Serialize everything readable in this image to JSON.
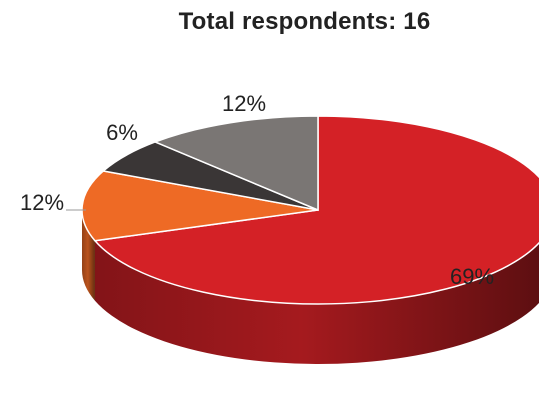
{
  "chart_data": {
    "type": "pie",
    "title": "Total respondents: 16",
    "style": "3d-exploded-none",
    "slices": [
      {
        "label": "69%",
        "value": 69,
        "color": "#d42126"
      },
      {
        "label": "12%",
        "value": 12,
        "color": "#ee6a25"
      },
      {
        "label": "6%",
        "value": 6,
        "color": "#3a3636"
      },
      {
        "label": "12%",
        "value": 12,
        "color": "#7a7674"
      }
    ],
    "legend": "none",
    "data_labels": "outside-and-inside"
  }
}
